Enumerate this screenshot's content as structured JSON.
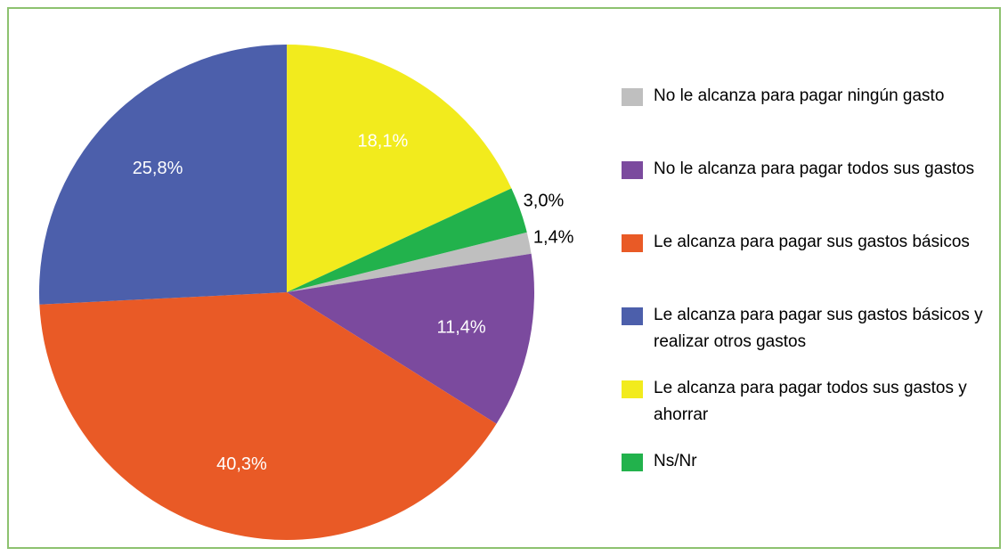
{
  "chart_data": {
    "type": "pie",
    "categories": [
      "No le alcanza para pagar ningún gasto",
      "No le alcanza para pagar todos sus gastos",
      "Le alcanza para pagar sus gastos básicos",
      "Le alcanza para pagar sus gastos básicos y realizar otros gastos",
      "Le alcanza para pagar todos sus gastos y ahorrar",
      "Ns/Nr"
    ],
    "values": [
      1.4,
      11.4,
      40.3,
      25.8,
      18.1,
      3.0
    ],
    "value_labels": [
      "1,4%",
      "11,4%",
      "40,3%",
      "25,8%",
      "18,1%",
      "3,0%"
    ],
    "colors": [
      "#bfbfbf",
      "#7b4a9e",
      "#e95a26",
      "#4c5fab",
      "#f2eb1d",
      "#22b24c"
    ],
    "legend": "right"
  }
}
